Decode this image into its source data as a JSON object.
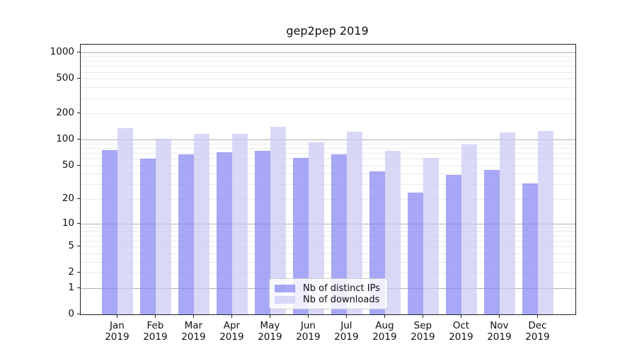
{
  "figure": {
    "title": "gep2pep 2019"
  },
  "chart_data": {
    "type": "bar",
    "title": "gep2pep 2019",
    "categories": [
      "Jan",
      "Feb",
      "Mar",
      "Apr",
      "May",
      "Jun",
      "Jul",
      "Aug",
      "Sep",
      "Oct",
      "Nov",
      "Dec"
    ],
    "category_year": "2019",
    "series": [
      {
        "name": "Nb of distinct IPs",
        "color": "rgba(135,135,243,0.72)",
        "color_hex": "#a9a9f6",
        "values": [
          75,
          60,
          68,
          71,
          74,
          61,
          68,
          43,
          24,
          39,
          44,
          31
        ]
      },
      {
        "name": "Nb of downloads",
        "color": "rgba(201,201,243,0.70)",
        "color_hex": "#d9d9f8",
        "values": [
          135,
          102,
          116,
          116,
          142,
          93,
          124,
          74,
          61,
          88,
          120,
          125
        ]
      }
    ],
    "yscale": "log1p",
    "yticks": [
      0,
      1,
      2,
      5,
      10,
      20,
      50,
      100,
      200,
      500,
      1000
    ],
    "ylim": [
      0,
      1240
    ],
    "grid": "on",
    "grid_major_at": [
      1,
      10,
      100,
      1000
    ],
    "grid_colors": {
      "major": "#b0b0b0",
      "minor": "#e9e9e9"
    },
    "legend_position": "lower center",
    "xlabel": "",
    "ylabel": ""
  }
}
